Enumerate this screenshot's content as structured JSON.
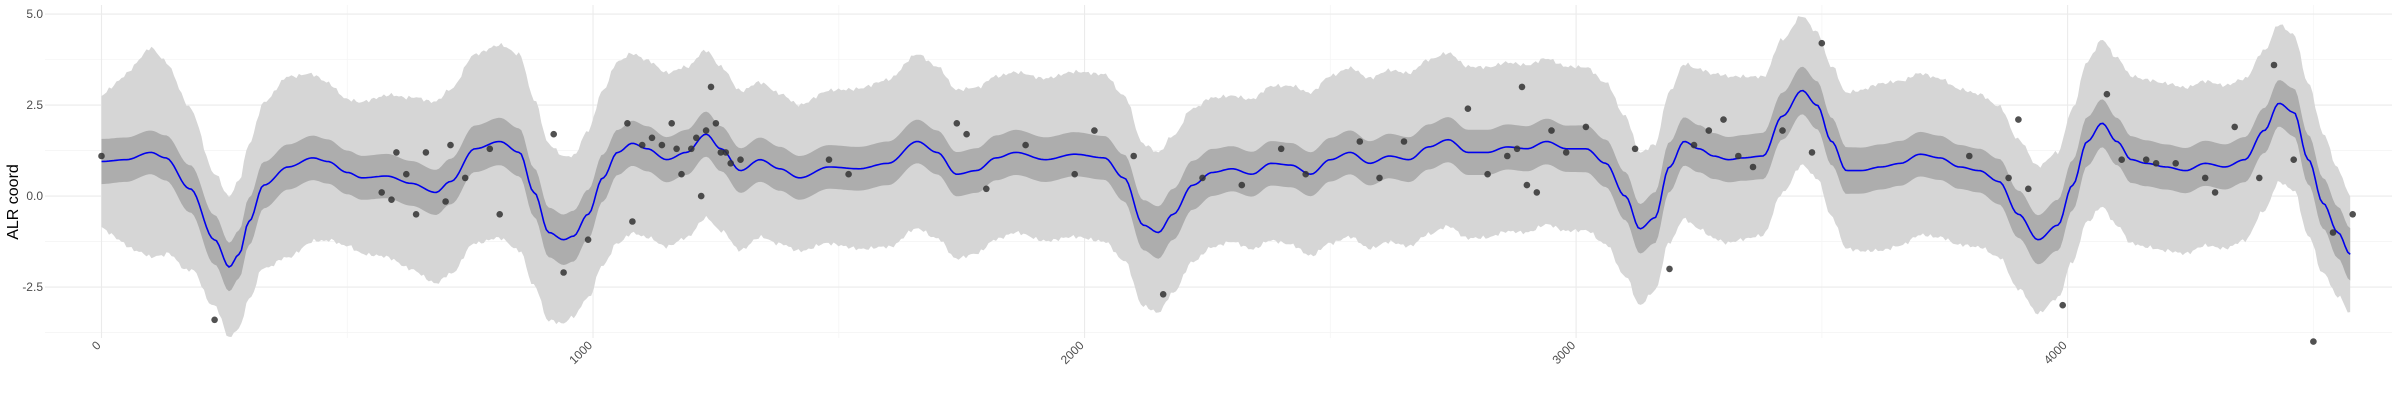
{
  "chart_data": {
    "type": "line",
    "title": "",
    "xlabel": "",
    "ylabel": "ALR coord",
    "xlim": [
      -115,
      4660
    ],
    "ylim": [
      -3.9,
      5.25
    ],
    "x_ticks": [
      0,
      1000,
      2000,
      3000,
      4000
    ],
    "x_tick_labels": [
      "0",
      "1000",
      "2000",
      "3000",
      "4000"
    ],
    "y_ticks": [
      -2.5,
      0.0,
      2.5,
      5.0
    ],
    "y_tick_labels": [
      "-2.5",
      "0.0",
      "2.5",
      "5.0"
    ],
    "grid": true,
    "colors": {
      "line": "#0000ee",
      "inner_band": "#adadad",
      "outer_band": "#d6d6d6",
      "points": "#333333",
      "grid_major": "#ebebeb",
      "grid_minor": "#f5f5f5"
    },
    "mean_curve": {
      "x": [
        0,
        50,
        100,
        130,
        180,
        230,
        260,
        280,
        300,
        330,
        380,
        430,
        460,
        500,
        530,
        580,
        630,
        680,
        710,
        760,
        810,
        850,
        880,
        910,
        940,
        960,
        990,
        1020,
        1050,
        1080,
        1110,
        1150,
        1190,
        1230,
        1260,
        1300,
        1340,
        1380,
        1420,
        1480,
        1540,
        1600,
        1660,
        1700,
        1740,
        1780,
        1820,
        1860,
        1920,
        1980,
        2040,
        2080,
        2120,
        2150,
        2180,
        2220,
        2260,
        2300,
        2340,
        2380,
        2420,
        2460,
        2500,
        2540,
        2580,
        2620,
        2660,
        2700,
        2740,
        2780,
        2820,
        2860,
        2900,
        2940,
        2980,
        3020,
        3060,
        3100,
        3130,
        3160,
        3190,
        3220,
        3250,
        3280,
        3310,
        3340,
        3380,
        3420,
        3460,
        3490,
        3520,
        3550,
        3580,
        3620,
        3660,
        3700,
        3740,
        3780,
        3820,
        3860,
        3900,
        3940,
        3980,
        4010,
        4040,
        4070,
        4100,
        4130,
        4160,
        4200,
        4240,
        4280,
        4320,
        4360,
        4400,
        4430,
        4460,
        4490,
        4520,
        4550,
        4575
      ],
      "y": [
        0.95,
        1.0,
        1.2,
        1.05,
        0.2,
        -1.2,
        -1.95,
        -1.6,
        -0.7,
        0.3,
        0.8,
        1.05,
        0.95,
        0.65,
        0.5,
        0.55,
        0.35,
        0.1,
        0.4,
        1.3,
        1.5,
        1.2,
        0.1,
        -1.0,
        -1.2,
        -1.1,
        -0.5,
        0.5,
        1.2,
        1.45,
        1.3,
        1.0,
        1.2,
        1.7,
        1.3,
        0.7,
        1.0,
        0.75,
        0.5,
        0.8,
        0.75,
        0.9,
        1.5,
        1.2,
        0.6,
        0.7,
        1.05,
        1.2,
        1.0,
        1.15,
        1.05,
        0.5,
        -0.8,
        -1.0,
        -0.5,
        0.3,
        0.65,
        0.75,
        0.6,
        0.9,
        0.85,
        0.6,
        1.0,
        1.2,
        0.9,
        1.1,
        1.0,
        1.35,
        1.55,
        1.2,
        1.2,
        1.35,
        1.3,
        1.5,
        1.3,
        1.3,
        0.9,
        0.0,
        -0.9,
        -0.6,
        0.8,
        1.5,
        1.3,
        1.1,
        1.0,
        1.05,
        1.1,
        2.2,
        2.9,
        2.5,
        1.5,
        0.7,
        0.7,
        0.8,
        0.9,
        1.15,
        1.05,
        0.8,
        0.7,
        0.4,
        -0.5,
        -1.2,
        -0.8,
        0.3,
        1.5,
        2.0,
        1.5,
        1.0,
        0.9,
        0.8,
        0.7,
        0.9,
        0.8,
        1.0,
        1.8,
        2.55,
        2.3,
        1.0,
        -0.2,
        -1.0,
        -1.6
      ]
    },
    "inner_band_halfwidth": {
      "x": [
        0,
        100,
        230,
        380,
        500,
        680,
        850,
        960,
        1050,
        1230,
        1420,
        1660,
        1860,
        2040,
        2150,
        2300,
        2500,
        2700,
        2900,
        3100,
        3160,
        3300,
        3490,
        3620,
        3820,
        3980,
        4070,
        4200,
        4400,
        4490,
        4575
      ],
      "y": [
        0.62,
        0.6,
        0.68,
        0.62,
        0.6,
        0.62,
        0.66,
        0.7,
        0.62,
        0.62,
        0.6,
        0.6,
        0.62,
        0.6,
        0.72,
        0.62,
        0.6,
        0.62,
        0.62,
        0.66,
        0.7,
        0.62,
        0.66,
        0.62,
        0.6,
        0.7,
        0.66,
        0.62,
        0.62,
        0.68,
        0.72
      ]
    },
    "outer_band_halfwidth": {
      "x": [
        0,
        100,
        230,
        380,
        500,
        680,
        850,
        960,
        1050,
        1230,
        1420,
        1660,
        1860,
        2040,
        2150,
        2300,
        2500,
        2700,
        2900,
        3100,
        3160,
        3300,
        3490,
        3620,
        3820,
        3980,
        4070,
        4200,
        4400,
        4490,
        4575
      ],
      "y": [
        1.8,
        2.9,
        1.8,
        2.5,
        2.0,
        2.5,
        2.7,
        2.2,
        2.5,
        2.3,
        2.0,
        2.4,
        2.2,
        2.3,
        2.2,
        2.0,
        2.3,
        2.4,
        2.3,
        2.2,
        2.0,
        2.3,
        2.0,
        2.3,
        2.1,
        2.0,
        2.3,
        2.3,
        2.2,
        2.1,
        1.6
      ]
    },
    "points": {
      "x": [
        0,
        230,
        570,
        590,
        600,
        620,
        640,
        660,
        700,
        710,
        740,
        790,
        810,
        920,
        940,
        990,
        1070,
        1080,
        1100,
        1120,
        1140,
        1160,
        1170,
        1180,
        1200,
        1210,
        1220,
        1230,
        1240,
        1250,
        1260,
        1270,
        1280,
        1300,
        1480,
        1520,
        1740,
        1760,
        1800,
        1880,
        1980,
        2020,
        2100,
        2160,
        2240,
        2320,
        2400,
        2450,
        2560,
        2600,
        2650,
        2780,
        2820,
        2860,
        2880,
        2890,
        2900,
        2920,
        2950,
        2980,
        3020,
        3120,
        3190,
        3240,
        3270,
        3300,
        3330,
        3360,
        3420,
        3480,
        3500,
        3800,
        3880,
        3900,
        3920,
        3990,
        4080,
        4110,
        4160,
        4180,
        4220,
        4280,
        4300,
        4340,
        4390,
        4420,
        4460,
        4500,
        4540,
        4580
      ],
      "y": [
        1.1,
        -3.4,
        0.1,
        -0.1,
        1.2,
        0.6,
        -0.5,
        1.2,
        -0.15,
        1.4,
        0.5,
        1.3,
        -0.5,
        1.7,
        -2.1,
        -1.2,
        2.0,
        -0.7,
        1.4,
        1.6,
        1.4,
        2.0,
        1.3,
        0.6,
        1.3,
        1.6,
        0.0,
        1.8,
        3.0,
        2.0,
        1.2,
        1.2,
        0.9,
        1.0,
        1.0,
        0.6,
        2.0,
        1.7,
        0.2,
        1.4,
        0.6,
        1.8,
        1.1,
        -2.7,
        0.5,
        0.3,
        1.3,
        0.6,
        1.5,
        0.5,
        1.5,
        2.4,
        0.6,
        1.1,
        1.3,
        3.0,
        0.3,
        0.1,
        1.8,
        1.2,
        1.9,
        1.3,
        -2.0,
        1.4,
        1.8,
        2.1,
        1.1,
        0.8,
        1.8,
        1.2,
        4.2,
        1.1,
        0.5,
        2.1,
        0.2,
        -3.0,
        2.8,
        1.0,
        1.0,
        0.9,
        0.9,
        0.5,
        0.1,
        1.9,
        0.5,
        3.6,
        1.0,
        -4.0,
        -1.0,
        -0.5
      ]
    }
  }
}
